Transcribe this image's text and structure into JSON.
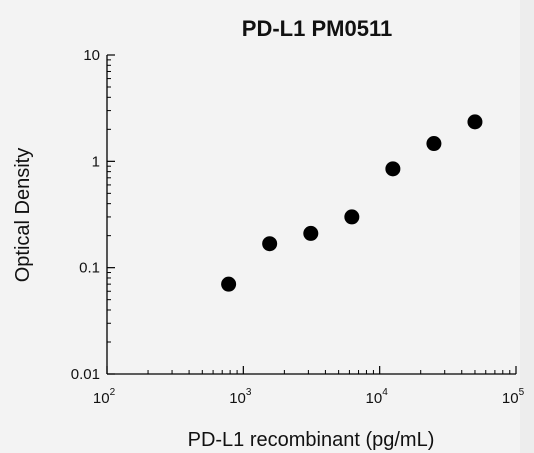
{
  "chart_data": {
    "type": "scatter",
    "title": "PD-L1 PM0511",
    "xlabel": "PD-L1 recombinant (pg/mL)",
    "ylabel": "Optical Density",
    "xscale": "log",
    "yscale": "log",
    "xlim": [
      100,
      100000
    ],
    "ylim": [
      0.01,
      10
    ],
    "x_ticks": [
      {
        "base": "10",
        "exp": "2",
        "value": 100
      },
      {
        "base": "10",
        "exp": "3",
        "value": 1000
      },
      {
        "base": "10",
        "exp": "4",
        "value": 10000
      },
      {
        "base": "10",
        "exp": "5",
        "value": 100000
      }
    ],
    "y_ticks": [
      {
        "label": "10",
        "value": 10
      },
      {
        "label": "1",
        "value": 1
      },
      {
        "label": "0.1",
        "value": 0.1
      },
      {
        "label": "0.01",
        "value": 0.01
      }
    ],
    "grid": false,
    "marker_color": "#000000",
    "points": [
      {
        "x": 780,
        "y": 0.07
      },
      {
        "x": 1560,
        "y": 0.168
      },
      {
        "x": 3125,
        "y": 0.21
      },
      {
        "x": 6250,
        "y": 0.3
      },
      {
        "x": 12500,
        "y": 0.85
      },
      {
        "x": 25000,
        "y": 1.47
      },
      {
        "x": 50000,
        "y": 2.35
      }
    ]
  }
}
